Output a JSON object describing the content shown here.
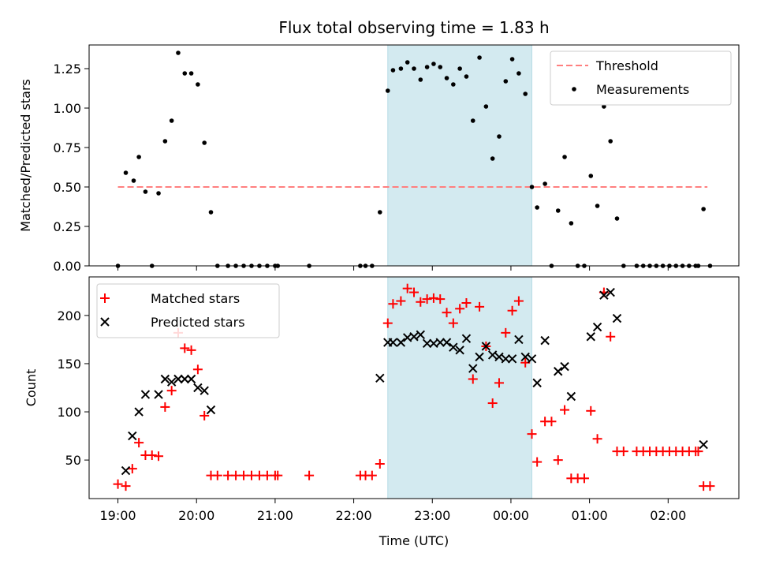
{
  "chart_data": [
    {
      "type": "scatter",
      "title": "Flux total observing time = 1.83 h",
      "xlabel": "",
      "ylabel": "Matched/Predicted stars",
      "ylim": [
        0,
        1.4
      ],
      "xlim": [
        "18:38",
        "02:54"
      ],
      "yticks": [
        0.0,
        0.25,
        0.5,
        0.75,
        1.0,
        1.25
      ],
      "ytick_labels": [
        "0.00",
        "0.25",
        "0.50",
        "0.75",
        "1.00",
        "1.25"
      ],
      "x_unit": "time of day (UTC)",
      "shaded_interval": [
        "22:26",
        "00:16"
      ],
      "shade_color": "#d3eaf0",
      "legend_position": "upper right",
      "series": [
        {
          "name": "Threshold",
          "kind": "line",
          "style": "dashed",
          "color": "#ff7f7f",
          "points": [
            [
              "19:00",
              0.5
            ],
            [
              "23:30",
              0.5
            ],
            [
              "02:30",
              0.5
            ]
          ]
        },
        {
          "name": "Measurements",
          "kind": "scatter",
          "marker": "dot",
          "color": "#000000",
          "points": [
            [
              "19:00",
              0.0
            ],
            [
              "19:06",
              0.59
            ],
            [
              "19:12",
              0.54
            ],
            [
              "19:16",
              0.69
            ],
            [
              "19:21",
              0.47
            ],
            [
              "19:26",
              0.0
            ],
            [
              "19:31",
              0.46
            ],
            [
              "19:36",
              0.79
            ],
            [
              "19:41",
              0.92
            ],
            [
              "19:46",
              1.35
            ],
            [
              "19:51",
              1.22
            ],
            [
              "19:56",
              1.22
            ],
            [
              "20:01",
              1.15
            ],
            [
              "20:06",
              0.78
            ],
            [
              "20:11",
              0.34
            ],
            [
              "20:16",
              0.0
            ],
            [
              "20:24",
              0.0
            ],
            [
              "20:30",
              0.0
            ],
            [
              "20:36",
              0.0
            ],
            [
              "20:42",
              0.0
            ],
            [
              "20:48",
              0.0
            ],
            [
              "20:54",
              0.0
            ],
            [
              "21:00",
              0.0
            ],
            [
              "21:02",
              0.0
            ],
            [
              "21:26",
              0.0
            ],
            [
              "22:05",
              0.0
            ],
            [
              "22:09",
              0.0
            ],
            [
              "22:14",
              0.0
            ],
            [
              "22:20",
              0.34
            ],
            [
              "22:26",
              1.11
            ],
            [
              "22:30",
              1.24
            ],
            [
              "22:36",
              1.25
            ],
            [
              "22:41",
              1.29
            ],
            [
              "22:46",
              1.25
            ],
            [
              "22:51",
              1.18
            ],
            [
              "22:56",
              1.26
            ],
            [
              "23:01",
              1.28
            ],
            [
              "23:06",
              1.26
            ],
            [
              "23:11",
              1.19
            ],
            [
              "23:16",
              1.15
            ],
            [
              "23:21",
              1.25
            ],
            [
              "23:26",
              1.2
            ],
            [
              "23:31",
              0.92
            ],
            [
              "23:36",
              1.32
            ],
            [
              "23:41",
              1.01
            ],
            [
              "23:46",
              0.68
            ],
            [
              "23:51",
              0.82
            ],
            [
              "23:56",
              1.17
            ],
            [
              "00:01",
              1.31
            ],
            [
              "00:06",
              1.22
            ],
            [
              "00:11",
              1.09
            ],
            [
              "00:16",
              0.5
            ],
            [
              "00:20",
              0.37
            ],
            [
              "00:26",
              0.52
            ],
            [
              "00:31",
              0.0
            ],
            [
              "00:36",
              0.35
            ],
            [
              "00:41",
              0.69
            ],
            [
              "00:46",
              0.27
            ],
            [
              "00:51",
              0.0
            ],
            [
              "00:56",
              0.0
            ],
            [
              "01:01",
              0.57
            ],
            [
              "01:06",
              0.38
            ],
            [
              "01:11",
              1.01
            ],
            [
              "01:16",
              0.79
            ],
            [
              "01:21",
              0.3
            ],
            [
              "01:26",
              0.0
            ],
            [
              "01:36",
              0.0
            ],
            [
              "01:41",
              0.0
            ],
            [
              "01:46",
              0.0
            ],
            [
              "01:51",
              0.0
            ],
            [
              "01:56",
              0.0
            ],
            [
              "02:01",
              0.0
            ],
            [
              "02:06",
              0.0
            ],
            [
              "02:11",
              0.0
            ],
            [
              "02:16",
              0.0
            ],
            [
              "02:21",
              0.0
            ],
            [
              "02:23",
              0.0
            ],
            [
              "02:27",
              0.36
            ],
            [
              "02:32",
              0.0
            ]
          ]
        }
      ]
    },
    {
      "type": "scatter",
      "title": "",
      "xlabel": "Time (UTC)",
      "ylabel": "Count",
      "ylim": [
        10,
        240
      ],
      "xlim": [
        "18:38",
        "02:54"
      ],
      "yticks": [
        50,
        100,
        150,
        200
      ],
      "ytick_labels": [
        "50",
        "100",
        "150",
        "200"
      ],
      "xticks": [
        "19:00",
        "20:00",
        "21:00",
        "22:00",
        "23:00",
        "00:00",
        "01:00",
        "02:00"
      ],
      "x_unit": "time of day (UTC)",
      "shaded_interval": [
        "22:26",
        "00:16"
      ],
      "shade_color": "#d3eaf0",
      "legend_position": "upper left",
      "series": [
        {
          "name": "Matched stars",
          "kind": "scatter",
          "marker": "plus",
          "color": "#ff0000",
          "points": [
            [
              "19:00",
              25
            ],
            [
              "19:06",
              23
            ],
            [
              "19:11",
              41
            ],
            [
              "19:16",
              68
            ],
            [
              "19:21",
              55
            ],
            [
              "19:26",
              55
            ],
            [
              "19:31",
              54
            ],
            [
              "19:36",
              105
            ],
            [
              "19:41",
              122
            ],
            [
              "19:46",
              182
            ],
            [
              "19:51",
              166
            ],
            [
              "19:56",
              164
            ],
            [
              "20:01",
              144
            ],
            [
              "20:06",
              96
            ],
            [
              "20:11",
              34
            ],
            [
              "20:16",
              34
            ],
            [
              "20:24",
              34
            ],
            [
              "20:30",
              34
            ],
            [
              "20:36",
              34
            ],
            [
              "20:42",
              34
            ],
            [
              "20:48",
              34
            ],
            [
              "20:54",
              34
            ],
            [
              "21:00",
              34
            ],
            [
              "21:02",
              34
            ],
            [
              "21:26",
              34
            ],
            [
              "22:05",
              34
            ],
            [
              "22:09",
              34
            ],
            [
              "22:14",
              34
            ],
            [
              "22:20",
              46
            ],
            [
              "22:26",
              192
            ],
            [
              "22:30",
              212
            ],
            [
              "22:36",
              215
            ],
            [
              "22:41",
              228
            ],
            [
              "22:46",
              224
            ],
            [
              "22:51",
              214
            ],
            [
              "22:56",
              217
            ],
            [
              "23:01",
              218
            ],
            [
              "23:06",
              217
            ],
            [
              "23:11",
              203
            ],
            [
              "23:16",
              192
            ],
            [
              "23:21",
              207
            ],
            [
              "23:26",
              213
            ],
            [
              "23:31",
              134
            ],
            [
              "23:36",
              209
            ],
            [
              "23:41",
              168
            ],
            [
              "23:46",
              109
            ],
            [
              "23:51",
              130
            ],
            [
              "23:56",
              182
            ],
            [
              "00:01",
              205
            ],
            [
              "00:06",
              215
            ],
            [
              "00:11",
              151
            ],
            [
              "00:16",
              77
            ],
            [
              "00:20",
              48
            ],
            [
              "00:26",
              90
            ],
            [
              "00:31",
              90
            ],
            [
              "00:36",
              50
            ],
            [
              "00:41",
              102
            ],
            [
              "00:46",
              31
            ],
            [
              "00:51",
              31
            ],
            [
              "00:56",
              31
            ],
            [
              "01:01",
              101
            ],
            [
              "01:06",
              72
            ],
            [
              "01:11",
              224
            ],
            [
              "01:16",
              178
            ],
            [
              "01:21",
              59
            ],
            [
              "01:26",
              59
            ],
            [
              "01:36",
              59
            ],
            [
              "01:41",
              59
            ],
            [
              "01:46",
              59
            ],
            [
              "01:51",
              59
            ],
            [
              "01:56",
              59
            ],
            [
              "02:01",
              59
            ],
            [
              "02:06",
              59
            ],
            [
              "02:11",
              59
            ],
            [
              "02:16",
              59
            ],
            [
              "02:21",
              59
            ],
            [
              "02:23",
              59
            ],
            [
              "02:27",
              23
            ],
            [
              "02:32",
              23
            ]
          ]
        },
        {
          "name": "Predicted stars",
          "kind": "scatter",
          "marker": "x",
          "color": "#000000",
          "points": [
            [
              "19:06",
              39
            ],
            [
              "19:11",
              75
            ],
            [
              "19:16",
              100
            ],
            [
              "19:21",
              118
            ],
            [
              "19:31",
              118
            ],
            [
              "19:36",
              134
            ],
            [
              "19:41",
              131
            ],
            [
              "19:46",
              134
            ],
            [
              "19:51",
              134
            ],
            [
              "19:56",
              134
            ],
            [
              "20:01",
              125
            ],
            [
              "20:06",
              122
            ],
            [
              "20:11",
              102
            ],
            [
              "22:20",
              135
            ],
            [
              "22:26",
              172
            ],
            [
              "22:30",
              172
            ],
            [
              "22:36",
              172
            ],
            [
              "22:41",
              177
            ],
            [
              "22:46",
              178
            ],
            [
              "22:51",
              180
            ],
            [
              "22:56",
              171
            ],
            [
              "23:01",
              171
            ],
            [
              "23:06",
              172
            ],
            [
              "23:11",
              172
            ],
            [
              "23:16",
              167
            ],
            [
              "23:21",
              164
            ],
            [
              "23:26",
              176
            ],
            [
              "23:31",
              145
            ],
            [
              "23:36",
              157
            ],
            [
              "23:41",
              168
            ],
            [
              "23:46",
              159
            ],
            [
              "23:51",
              157
            ],
            [
              "23:56",
              155
            ],
            [
              "00:01",
              155
            ],
            [
              "00:06",
              175
            ],
            [
              "00:11",
              157
            ],
            [
              "00:16",
              155
            ],
            [
              "00:20",
              130
            ],
            [
              "00:26",
              174
            ],
            [
              "00:36",
              142
            ],
            [
              "00:41",
              147
            ],
            [
              "00:46",
              116
            ],
            [
              "01:01",
              178
            ],
            [
              "01:06",
              188
            ],
            [
              "01:11",
              221
            ],
            [
              "01:16",
              224
            ],
            [
              "01:21",
              197
            ],
            [
              "02:27",
              66
            ]
          ]
        }
      ]
    }
  ]
}
